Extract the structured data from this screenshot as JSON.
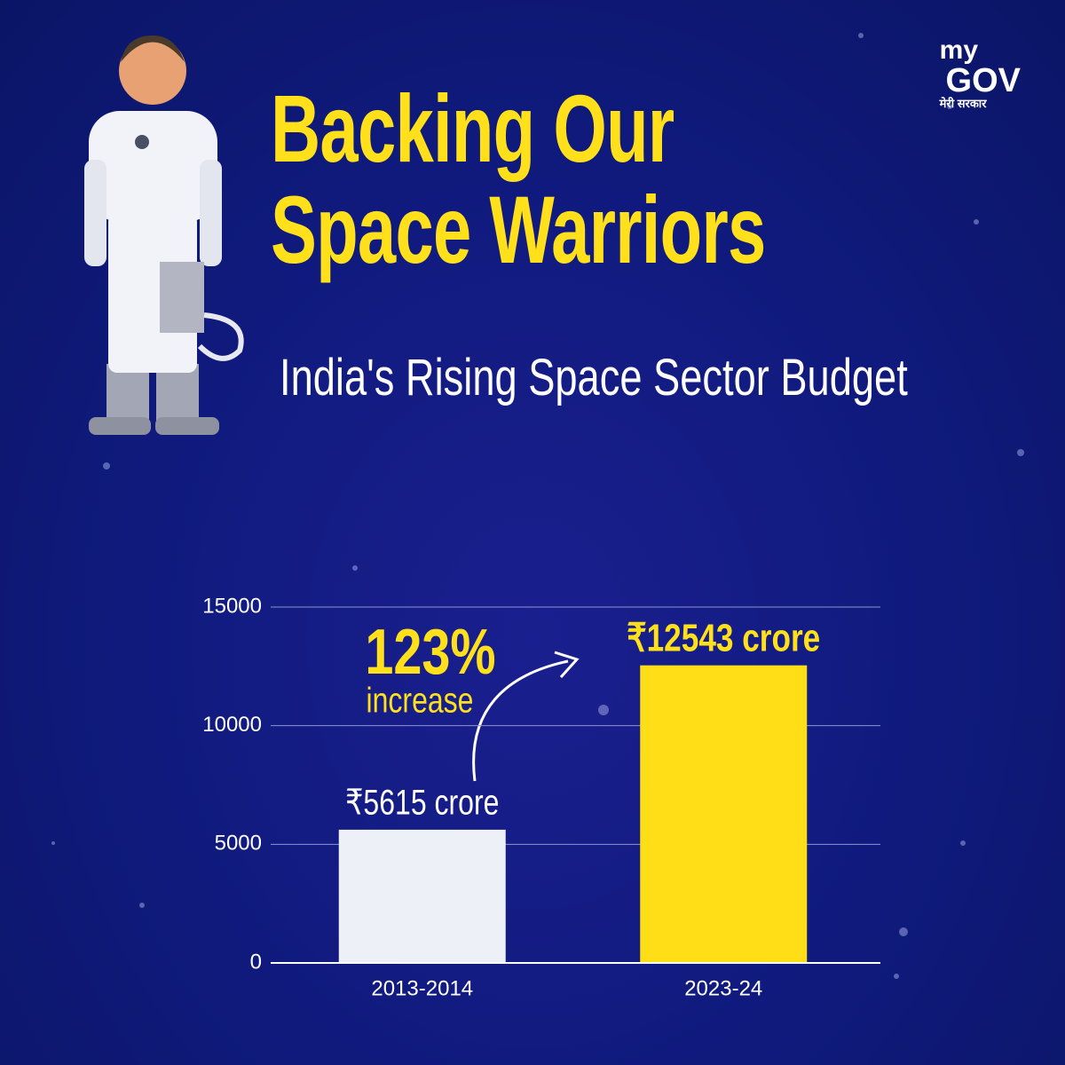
{
  "logo": {
    "line1": "my",
    "line2": "GOV",
    "tagline": "मेरी सरकार"
  },
  "chart_data": {
    "type": "bar",
    "title": "Backing Our Space Warriors",
    "subtitle": "India's Rising Space Sector Budget",
    "annotation": {
      "value": "123%",
      "text": "increase"
    },
    "categories": [
      "2013-2014",
      "2023-24"
    ],
    "values": [
      5615,
      12543
    ],
    "value_labels": [
      "₹5615 crore",
      "₹12543 crore"
    ],
    "colors": [
      "#eef0f7",
      "#ffde17"
    ],
    "ylim": [
      0,
      15000
    ],
    "yticks": [
      0,
      5000,
      10000,
      15000
    ],
    "grid": true
  }
}
